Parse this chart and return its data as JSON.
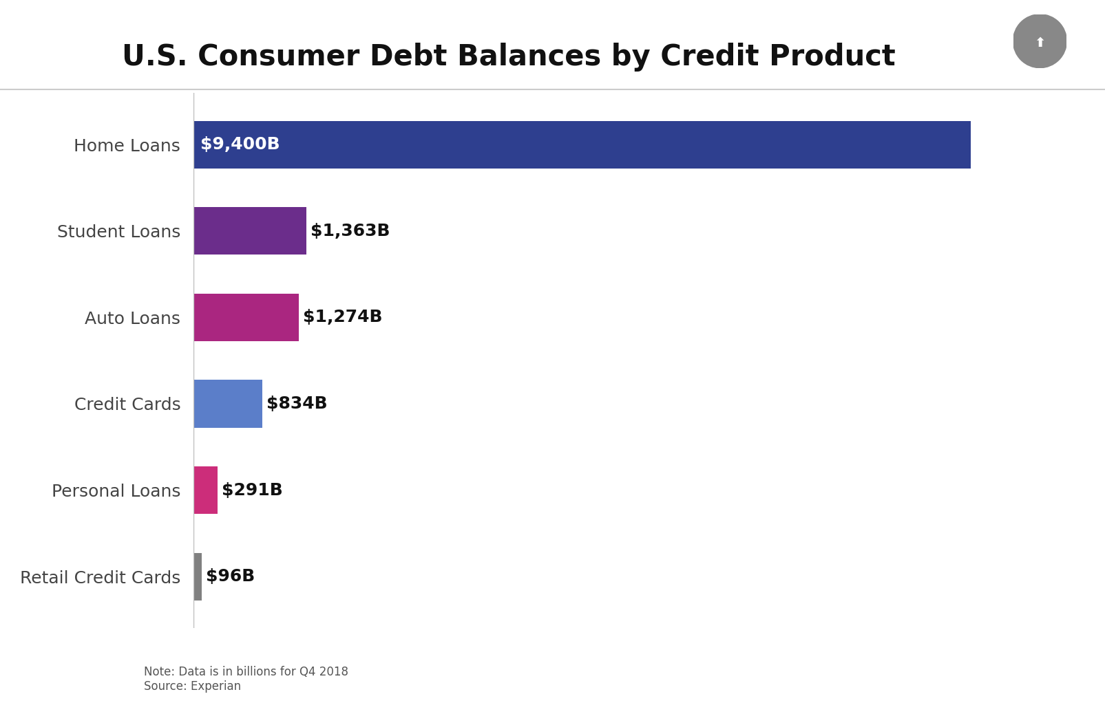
{
  "title": "U.S. Consumer Debt Balances by Credit Product",
  "categories": [
    "Home Loans",
    "Student Loans",
    "Auto Loans",
    "Credit Cards",
    "Personal Loans",
    "Retail Credit Cards"
  ],
  "values": [
    9400,
    1363,
    1274,
    834,
    291,
    96
  ],
  "labels": [
    "$9,400B",
    "$1,363B",
    "$1,274B",
    "$834B",
    "$291B",
    "$96B"
  ],
  "colors": [
    "#2e3f8f",
    "#6b2d8b",
    "#aa2680",
    "#5b7ec9",
    "#cc2d7a",
    "#808080"
  ],
  "background_color": "#ffffff",
  "title_fontsize": 30,
  "label_fontsize": 18,
  "category_fontsize": 18,
  "note_text": "Note: Data is in billions for Q4 2018\nSource: Experian",
  "note_fontsize": 12,
  "home_loan_label_color": "#ffffff",
  "other_label_color": "#111111",
  "separator_color": "#cccccc",
  "icon_bg_color": "#888888",
  "bar_height": 0.55,
  "xlim_max": 10500
}
